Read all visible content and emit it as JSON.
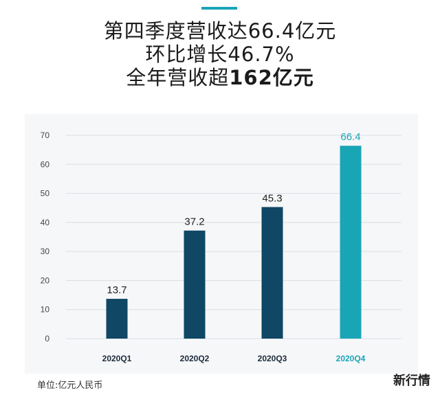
{
  "headline": {
    "line1": "第四季度营收达66.4亿元",
    "line2": "环比增长46.7%",
    "line3_prefix": "全年营收超",
    "line3_bold": "162亿元"
  },
  "unit_note": "单位:亿元人民币",
  "watermark": "新行情",
  "colors": {
    "accent": "#1aa5b7",
    "bar_default": "#0f4764",
    "bar_highlight": "#1aa5b7",
    "grid": "#d9dde2"
  },
  "chart_data": {
    "type": "bar",
    "categories": [
      "2020Q1",
      "2020Q2",
      "2020Q3",
      "2020Q4"
    ],
    "values": [
      13.7,
      37.2,
      45.3,
      66.4
    ],
    "value_labels": [
      "13.7",
      "37.2",
      "45.3",
      "66.4"
    ],
    "highlight_index": 3,
    "ylim": [
      0,
      70
    ],
    "yticks": [
      0,
      10,
      20,
      30,
      40,
      50,
      60,
      70
    ],
    "grid": true,
    "title": "",
    "xlabel": "",
    "ylabel": ""
  }
}
